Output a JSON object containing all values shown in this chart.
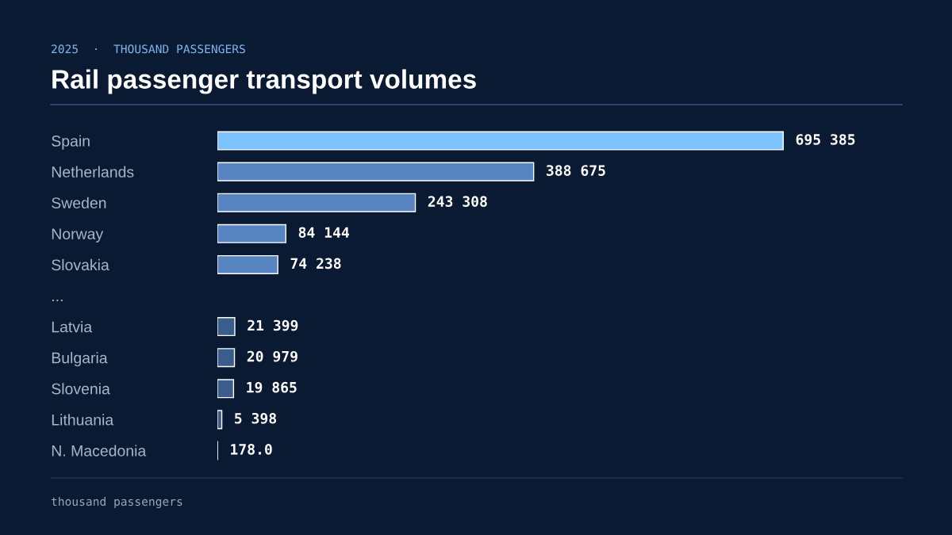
{
  "chart_data": {
    "type": "bar",
    "orientation": "horizontal",
    "title": "Rail passenger transport volumes",
    "subtitle": "2025  ·  THOUSAND PASSENGERS",
    "categories": [
      "Spain",
      "Netherlands",
      "Sweden",
      "Norway",
      "Slovakia",
      "...",
      "Latvia",
      "Bulgaria",
      "Slovenia",
      "Lithuania",
      "N. Macedonia"
    ],
    "values": [
      695385,
      388675,
      243308,
      84144,
      74238,
      null,
      21399,
      20979,
      19865,
      5398,
      178.0
    ],
    "value_labels": [
      "695 385",
      "388 675",
      "243 308",
      "84 144",
      "74 238",
      null,
      "21 399",
      "20 979",
      "19 865",
      "5 398",
      "178.0"
    ],
    "colors": [
      "#7dc4ff",
      "#5685c2",
      "#5685c2",
      "#5685c2",
      "#5685c2",
      "#5685c2",
      "#3b5d8c",
      "#3b5d8c",
      "#3b5d8c",
      "#3b5d8c",
      "#3b5d8c"
    ],
    "annotations": [
      "thousand passengers"
    ],
    "grid": false,
    "legend": false,
    "tick_labels": "y"
  }
}
